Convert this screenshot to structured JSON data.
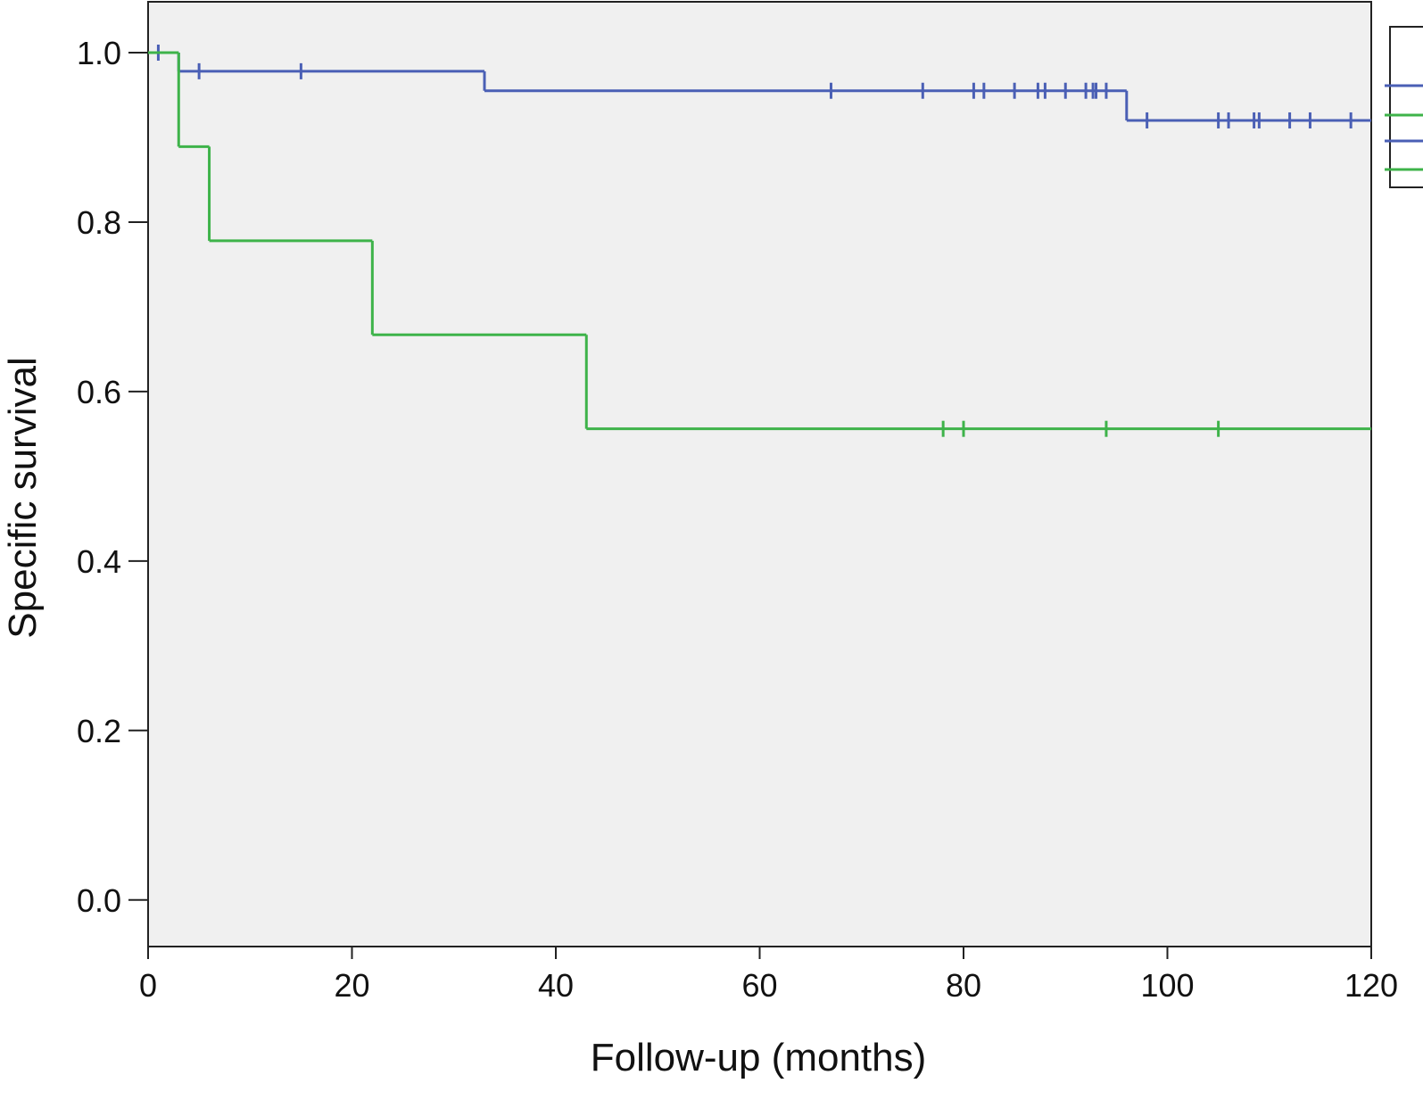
{
  "chart_data": {
    "type": "step",
    "x_label": "Follow-up (months)",
    "y_label": "Specific survival",
    "xlim": [
      0,
      120
    ],
    "ylim": [
      -0.055,
      1.06
    ],
    "xticks": [
      0,
      20,
      40,
      60,
      80,
      100,
      120
    ],
    "yticks": [
      {
        "value": 0,
        "label": "0.0"
      },
      0.2,
      0.4,
      0.6,
      0.8,
      {
        "value": 1,
        "label": "1.0"
      }
    ],
    "series": [
      {
        "color": "#4a5fb5",
        "x": [
          0,
          3,
          33,
          96,
          120
        ],
        "values": [
          1.0,
          0.978,
          0.955,
          0.92,
          0.92
        ],
        "censored_x": [
          1,
          5,
          15,
          67,
          76,
          81,
          82,
          85,
          87.3,
          88,
          90,
          92,
          92.7,
          93,
          94,
          98,
          105,
          106,
          108.5,
          109,
          112,
          114,
          118
        ],
        "censored_values": [
          1.0,
          0.978,
          0.978,
          0.955,
          0.955,
          0.955,
          0.955,
          0.955,
          0.955,
          0.955,
          0.955,
          0.955,
          0.955,
          0.955,
          0.955,
          0.92,
          0.92,
          0.92,
          0.92,
          0.92,
          0.92,
          0.92,
          0.92
        ]
      },
      {
        "color": "#3eb34a",
        "x": [
          0,
          3,
          6,
          22,
          43,
          120
        ],
        "values": [
          1.0,
          0.889,
          0.778,
          0.667,
          0.556,
          0.556
        ],
        "censored_x": [
          78,
          80,
          94,
          105
        ],
        "censored_values": [
          0.556,
          0.556,
          0.556,
          0.556
        ]
      }
    ]
  }
}
